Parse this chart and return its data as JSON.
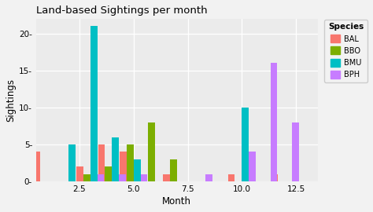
{
  "title": "Land-based Sightings per month",
  "xlabel": "Month",
  "ylabel": "Sightings",
  "species": [
    "BAL",
    "BBO",
    "BMU",
    "BPH"
  ],
  "colors": {
    "BAL": "#F8766D",
    "BBO": "#7CAE00",
    "BMU": "#00BFC4",
    "BPH": "#C77CFF"
  },
  "data": {
    "BAL": [
      [
        1,
        4
      ],
      [
        3,
        2
      ],
      [
        4,
        5
      ],
      [
        5,
        4
      ],
      [
        7,
        1
      ],
      [
        10,
        1
      ],
      [
        12,
        1
      ]
    ],
    "BBO": [
      [
        3,
        1
      ],
      [
        4,
        2
      ],
      [
        5,
        5
      ],
      [
        6,
        8
      ],
      [
        7,
        3
      ]
    ],
    "BMU": [
      [
        2,
        5
      ],
      [
        3,
        21
      ],
      [
        4,
        6
      ],
      [
        5,
        3
      ],
      [
        10,
        10
      ]
    ],
    "BPH": [
      [
        3,
        1
      ],
      [
        4,
        1
      ],
      [
        5,
        1
      ],
      [
        8,
        1
      ],
      [
        10,
        4
      ],
      [
        11,
        16
      ],
      [
        12,
        8
      ]
    ]
  },
  "ylim": [
    0,
    22
  ],
  "xlim": [
    0.5,
    13.5
  ],
  "xticks": [
    2.5,
    5.0,
    7.5,
    10.0,
    12.5
  ],
  "ytick_vals": [
    0,
    5,
    10,
    15,
    20
  ],
  "ytick_labels": [
    "0-",
    "5-",
    "10-",
    "15-",
    "20-"
  ],
  "bar_width": 0.32,
  "bar_offsets": [
    -0.48,
    -0.16,
    0.16,
    0.48
  ],
  "bg_color": "#EBEBEB",
  "panel_bg": "#EBEBEB",
  "grid_color": "white",
  "fig_bg": "#F2F2F2",
  "legend_bg": "#F2F2F2",
  "legend_title": "Species"
}
